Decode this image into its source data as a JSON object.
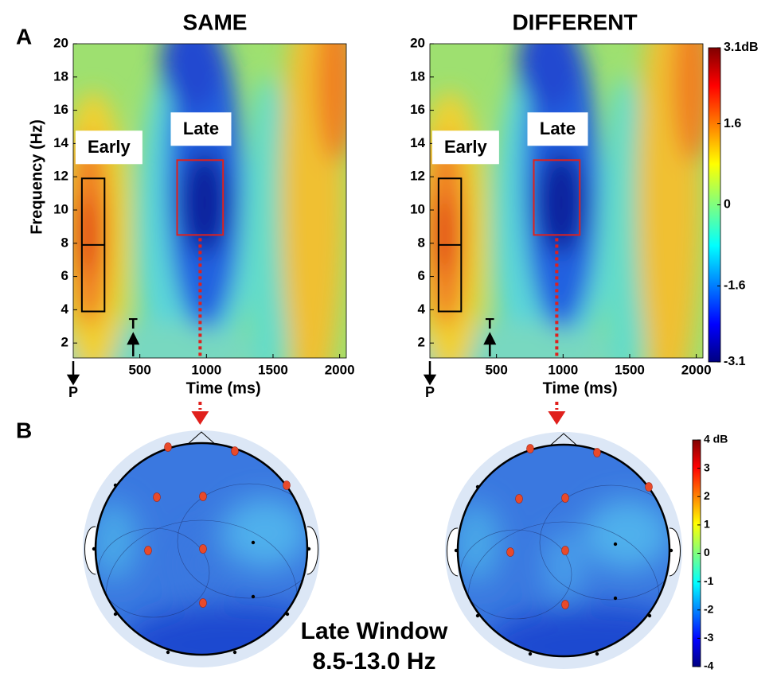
{
  "panel_labels": [
    "A",
    "B"
  ],
  "chart_data": [
    {
      "type": "heatmap",
      "title": "SAME",
      "xlabel": "Time (ms)",
      "ylabel": "Frequency (Hz)",
      "xlim": [
        0,
        2050
      ],
      "ylim": [
        1.1,
        20
      ],
      "xticks": [
        500,
        1000,
        1500,
        2000
      ],
      "yticks": [
        2,
        4,
        6,
        8,
        10,
        12,
        14,
        16,
        18,
        20
      ],
      "regions": [
        {
          "label": "Early",
          "color": "#000000",
          "x": [
            65,
            235
          ],
          "y": [
            3.9,
            11.9
          ],
          "divider": 7.9
        },
        {
          "label": "Late",
          "color": "#e0201c",
          "x": [
            780,
            1125
          ],
          "y": [
            8.5,
            13
          ]
        }
      ],
      "events": [
        {
          "label": "P",
          "x": 0,
          "direction": "down"
        },
        {
          "label": "T",
          "x": 450,
          "direction": "up"
        }
      ]
    },
    {
      "type": "heatmap",
      "title": "DIFFERENT",
      "xlabel": "Time (ms)",
      "xlim": [
        0,
        2050
      ],
      "ylim": [
        1.1,
        20
      ],
      "xticks": [
        500,
        1000,
        1500,
        2000
      ],
      "yticks": [
        2,
        4,
        6,
        8,
        10,
        12,
        14,
        16,
        18,
        20
      ],
      "regions": [
        {
          "label": "Early",
          "color": "#000000",
          "x": [
            65,
            235
          ],
          "y": [
            3.9,
            11.9
          ],
          "divider": 7.9
        },
        {
          "label": "Late",
          "color": "#e0201c",
          "x": [
            780,
            1125
          ],
          "y": [
            8.5,
            13
          ]
        }
      ],
      "events": [
        {
          "label": "P",
          "x": 0,
          "direction": "down"
        },
        {
          "label": "T",
          "x": 450,
          "direction": "up"
        }
      ]
    },
    {
      "type": "colorbar",
      "clim": [
        -3.1,
        3.1
      ],
      "ticks": [
        {
          "value": 3.1,
          "label": "3.1dB"
        },
        1.6,
        0,
        -1.6,
        -3.1
      ]
    },
    {
      "type": "topoplot",
      "caption": [
        "Late Window",
        "8.5-13.0 Hz"
      ]
    },
    {
      "type": "colorbar",
      "clim": [
        -4,
        4
      ],
      "ticks": [
        {
          "value": 4,
          "label": "4 dB"
        },
        3,
        2,
        1,
        0,
        -1,
        -2,
        -3,
        -4
      ]
    }
  ]
}
